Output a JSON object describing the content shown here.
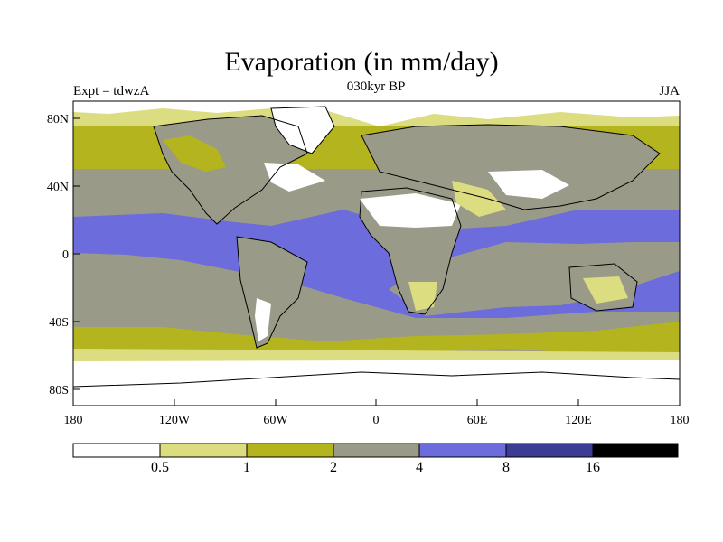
{
  "title": "Evaporation (in mm/day)",
  "subtitle": "030kyr BP",
  "left_label": "Expt = tdwzA",
  "right_label": "JJA",
  "axes": {
    "y_ticks": [
      "80N",
      "40N",
      "0",
      "40S",
      "80S"
    ],
    "x_ticks": [
      "180",
      "120W",
      "60W",
      "0",
      "60E",
      "120E",
      "180"
    ]
  },
  "colorbar": {
    "colors": [
      "#ffffff",
      "#dcdc80",
      "#b4b41e",
      "#9a9a88",
      "#6c6cdc",
      "#3c3c96",
      "#000000"
    ],
    "labels": [
      "0.5",
      "1",
      "2",
      "4",
      "8",
      "16"
    ]
  },
  "legend_colors": {
    "lt_0_5": "#ffffff",
    "0_5_1": "#dcdc80",
    "1_2": "#b4b41e",
    "2_4": "#9a9a88",
    "4_8": "#6c6cdc",
    "8_16": "#3c3c96",
    "gt_16": "#000000"
  }
}
